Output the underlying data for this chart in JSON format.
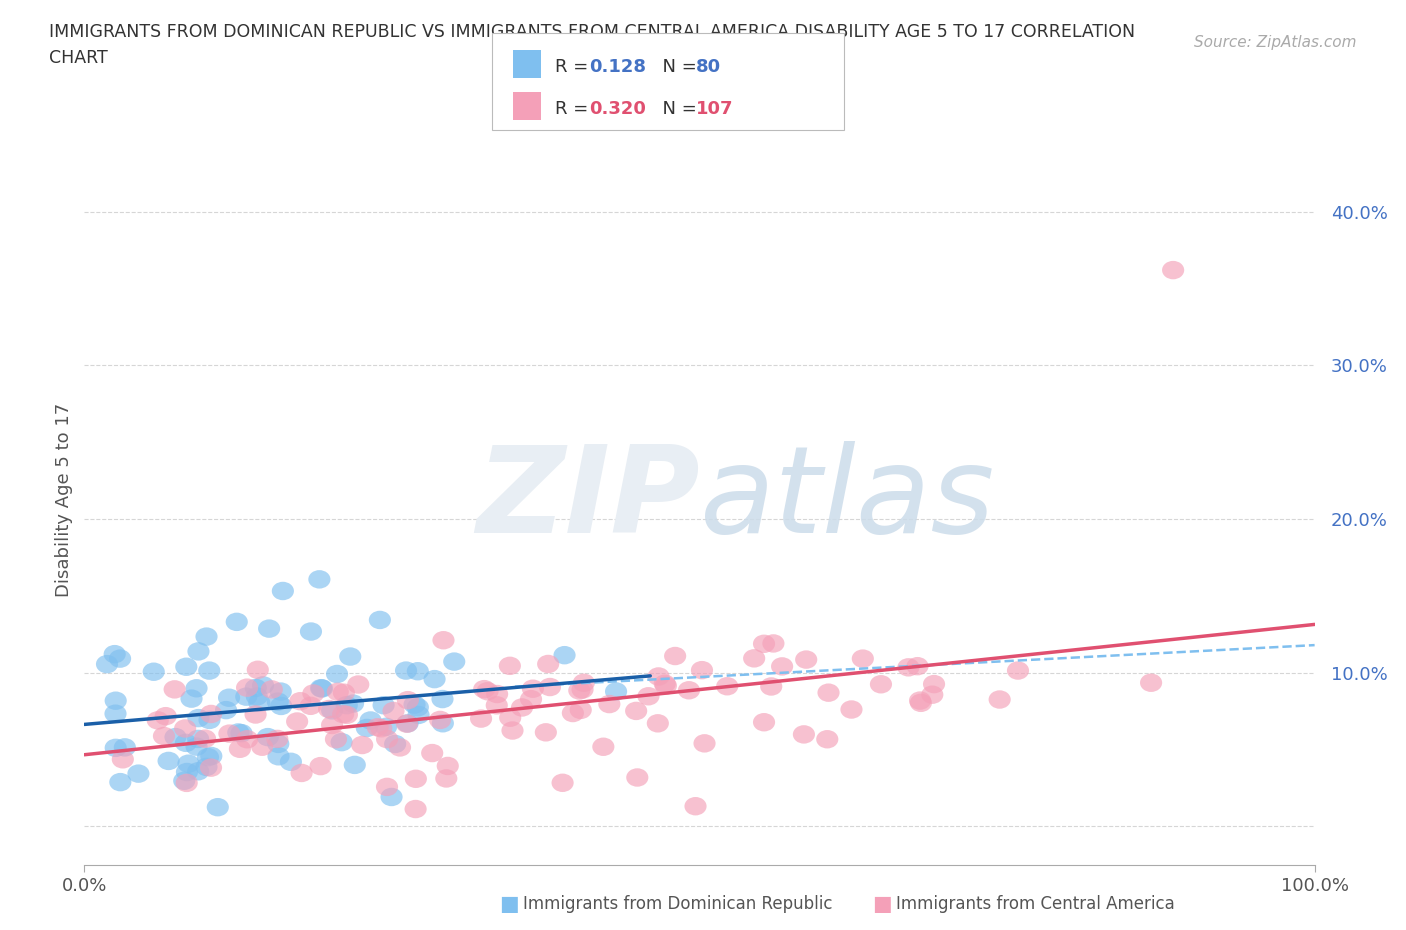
{
  "title_line1": "IMMIGRANTS FROM DOMINICAN REPUBLIC VS IMMIGRANTS FROM CENTRAL AMERICA DISABILITY AGE 5 TO 17 CORRELATION",
  "title_line2": "CHART",
  "source": "Source: ZipAtlas.com",
  "ylabel": "Disability Age 5 to 17",
  "r_values": [
    0.128,
    0.32
  ],
  "n_values": [
    80,
    107
  ],
  "color_dr_scatter": "#7fbfef",
  "color_ca_scatter": "#f4a0b8",
  "color_dr_line": "#1a5fa8",
  "color_ca_line": "#e05070",
  "color_dash": "#7fbfef",
  "xlim": [
    0.0,
    1.0
  ],
  "ylim": [
    -0.025,
    0.45
  ],
  "x_tick_labels": [
    "0.0%",
    "100.0%"
  ],
  "y_tick_labels": [
    "",
    "10.0%",
    "20.0%",
    "30.0%",
    "40.0%"
  ],
  "y_ticks": [
    0.0,
    0.1,
    0.2,
    0.3,
    0.4
  ],
  "background_color": "#ffffff",
  "legend_label_dr": "Immigrants from Dominican Republic",
  "legend_label_ca": "Immigrants from Central America"
}
